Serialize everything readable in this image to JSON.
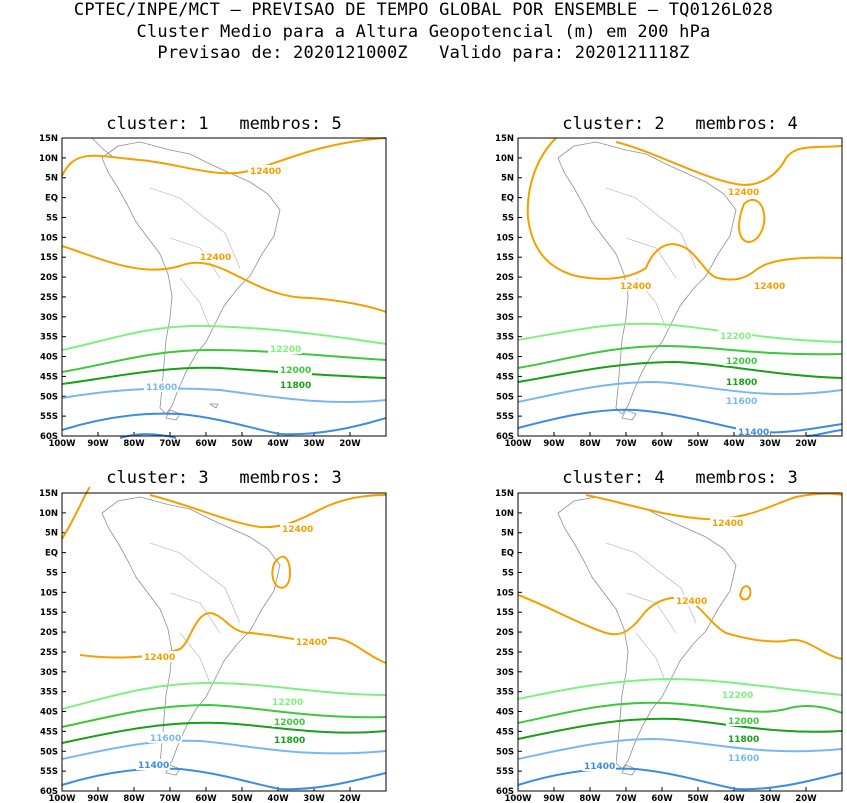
{
  "header": {
    "line1": "CPTEC/INPE/MCT – PREVISAO DE TEMPO GLOBAL POR ENSEMBLE – TQ0126L028",
    "line2": "Cluster Medio para a Altura Geopotencial (m) em 200 hPa",
    "line3": "Previsao de: 2020121000Z   Valido para: 2020121118Z"
  },
  "axes": {
    "lat_ticks": [
      "15N",
      "10N",
      "5N",
      "EQ",
      "5S",
      "10S",
      "15S",
      "20S",
      "25S",
      "30S",
      "35S",
      "40S",
      "45S",
      "50S",
      "55S",
      "60S"
    ],
    "lon_ticks": [
      "100W",
      "90W",
      "80W",
      "70W",
      "60W",
      "50W",
      "40W",
      "30W",
      "20W"
    ]
  },
  "colors": {
    "c12400": "#f5a000",
    "c12200": "#80f080",
    "c12000": "#3cc83c",
    "c11800": "#18a018",
    "c11600": "#78b8f0",
    "c11400": "#3c8ce6"
  },
  "panels": [
    {
      "title": "cluster: 1   membros: 5",
      "labels": {
        "a": "12400",
        "b": "12400",
        "c": "12200",
        "d": "12000",
        "e": "11800",
        "f": "11600"
      }
    },
    {
      "title": "cluster: 2   membros: 4",
      "labels": {
        "a": "12400",
        "b": "12400",
        "c": "12400",
        "d": "12200",
        "e": "12000",
        "f": "11800",
        "g": "11600",
        "h": "11400"
      }
    },
    {
      "title": "cluster: 3   membros: 3",
      "labels": {
        "a": "12400",
        "b": "12400",
        "c": "12400",
        "d": "12200",
        "e": "12000",
        "f": "11800",
        "g": "11600",
        "h": "11400"
      }
    },
    {
      "title": "cluster: 4   membros: 3",
      "labels": {
        "a": "12400",
        "b": "12400",
        "c": "12200",
        "d": "12000",
        "e": "11800",
        "f": "11600",
        "g": "11400"
      }
    }
  ]
}
